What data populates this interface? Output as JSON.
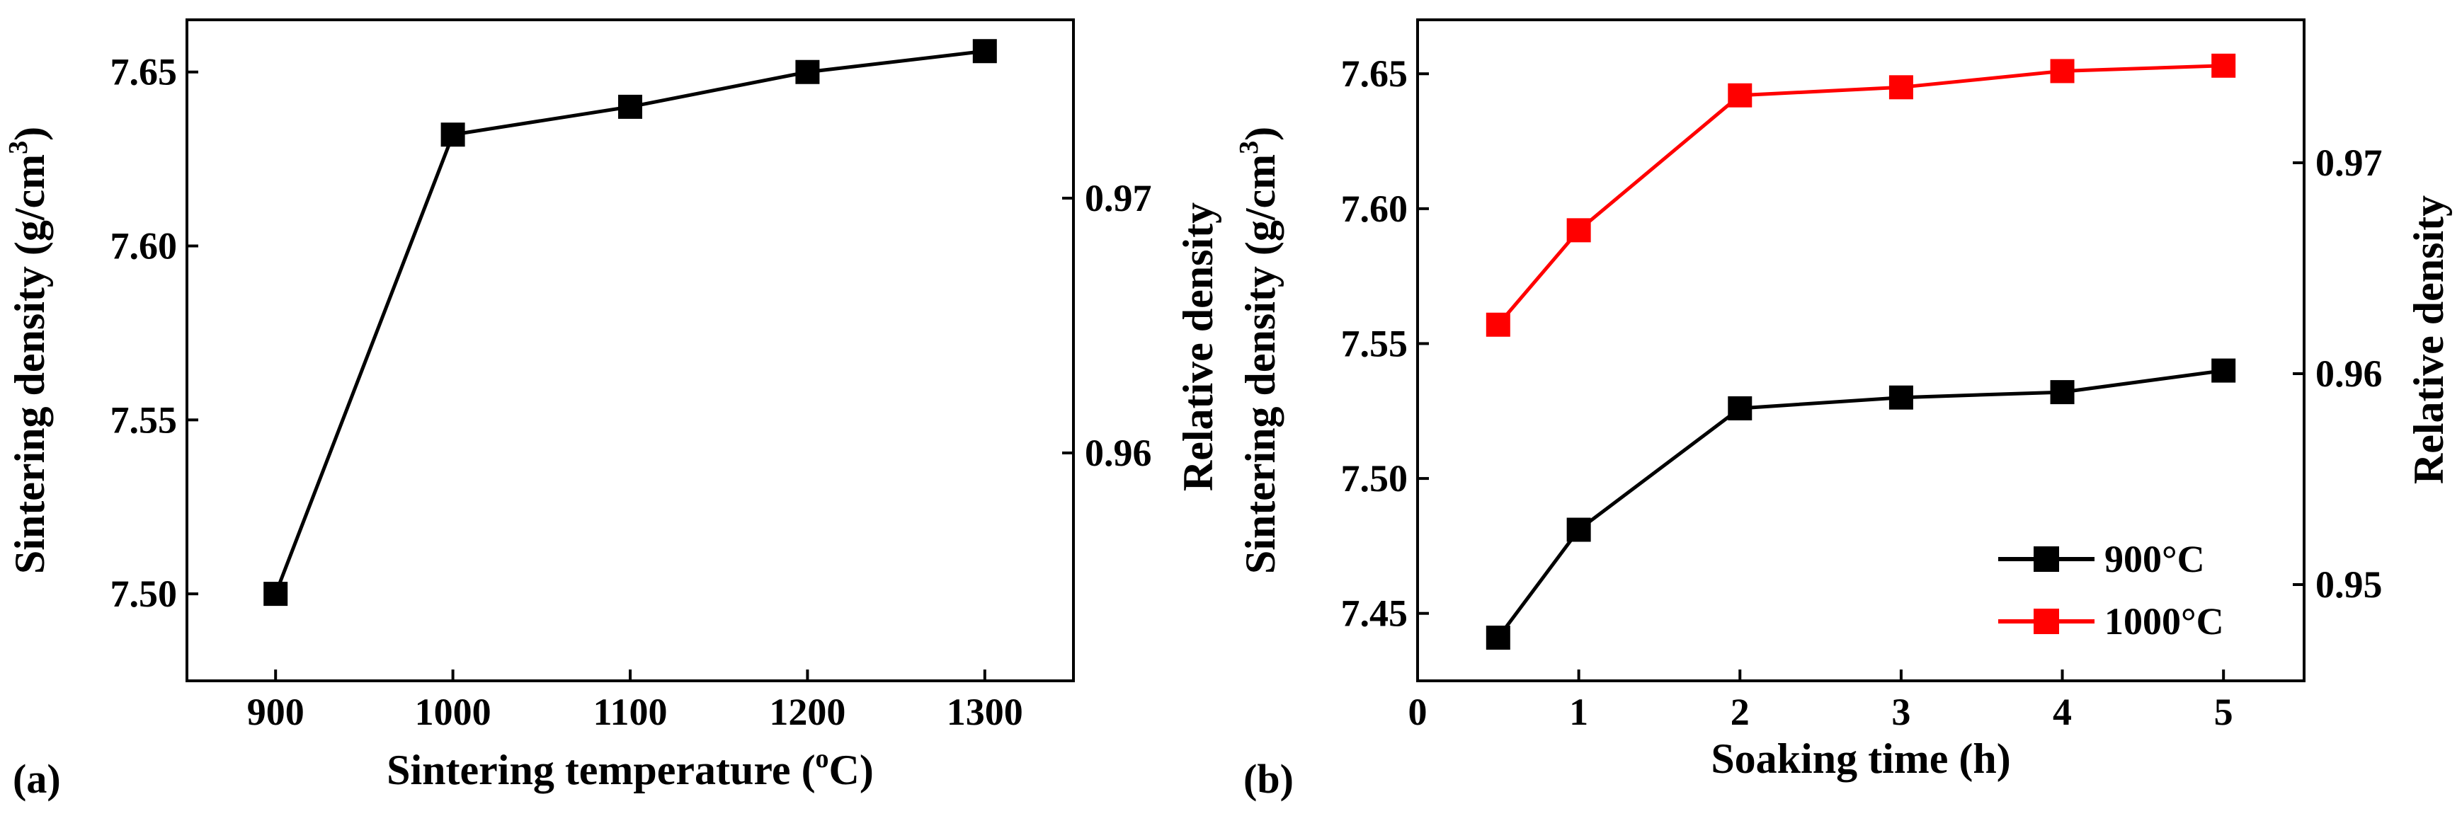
{
  "chart_data": [
    {
      "panel_label": "(a)",
      "type": "line",
      "xlabel_pre": "Sintering temperature (",
      "xlabel_sup": "o",
      "xlabel_post": "C)",
      "ylabel_pre": "Sintering density (g/cm",
      "ylabel_sup": "3",
      "ylabel_post": ")",
      "ylabel_right": "Relative density",
      "xlim": [
        850,
        1350
      ],
      "ylim": [
        7.475,
        7.665
      ],
      "xticks": [
        900,
        1000,
        1100,
        1200,
        1300
      ],
      "xtick_labels": [
        "900",
        "1000",
        "1100",
        "1200",
        "1300"
      ],
      "yticks": [
        7.5,
        7.55,
        7.6,
        7.65
      ],
      "ytick_labels": [
        "7.50",
        "7.55",
        "7.60",
        "7.65"
      ],
      "right_ytick_values": [
        0.96,
        0.97
      ],
      "right_ytick_labels": [
        "0.96",
        "0.97"
      ],
      "grid": false,
      "series": [
        {
          "name": "density",
          "color": "#000000",
          "x": [
            900,
            1000,
            1100,
            1200,
            1300
          ],
          "values": [
            7.5,
            7.632,
            7.64,
            7.65,
            7.656
          ]
        }
      ]
    },
    {
      "panel_label": "(b)",
      "type": "line",
      "xlabel": "Soaking time (h)",
      "ylabel_pre": "Sintering density (g/cm",
      "ylabel_sup": "3",
      "ylabel_post": ")",
      "ylabel_right": "Relative density",
      "xlim": [
        0,
        5.5
      ],
      "ylim": [
        7.425,
        7.67
      ],
      "xticks": [
        0,
        1,
        2,
        3,
        4,
        5
      ],
      "xtick_labels": [
        "0",
        "1",
        "2",
        "3",
        "4",
        "5"
      ],
      "yticks": [
        7.45,
        7.5,
        7.55,
        7.6,
        7.65
      ],
      "ytick_labels": [
        "7.45",
        "7.50",
        "7.55",
        "7.60",
        "7.65"
      ],
      "right_ytick_values": [
        0.95,
        0.96,
        0.97
      ],
      "right_ytick_labels": [
        "0.95",
        "0.96",
        "0.97"
      ],
      "grid": false,
      "legend_position": "bottom-right",
      "series": [
        {
          "name": "900°C",
          "color": "#000000",
          "x": [
            0.5,
            1,
            2,
            3,
            4,
            5
          ],
          "values": [
            7.441,
            7.481,
            7.526,
            7.53,
            7.532,
            7.54
          ]
        },
        {
          "name": "1000°C",
          "color": "#ff0000",
          "x": [
            0.5,
            1,
            2,
            3,
            4,
            5
          ],
          "values": [
            7.557,
            7.592,
            7.642,
            7.645,
            7.651,
            7.653
          ]
        }
      ]
    }
  ]
}
